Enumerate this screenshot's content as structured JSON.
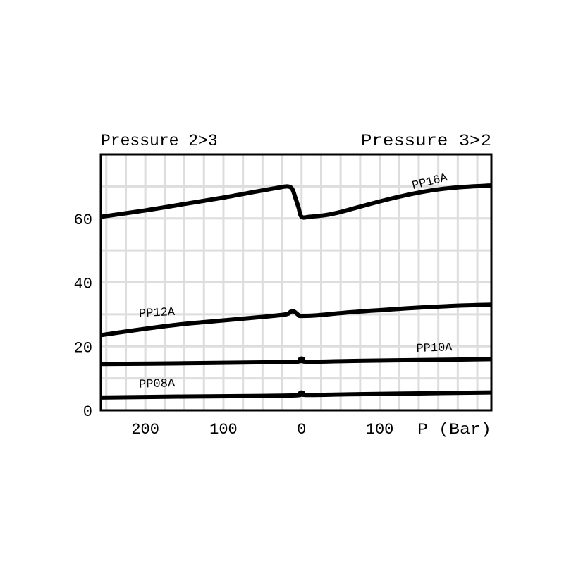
{
  "chart_data": {
    "type": "line",
    "title": "",
    "header_left": "Pressure 2>3",
    "header_right": "Pressure 3>2",
    "xlabel": "P (Bar)",
    "ylabel": "",
    "x_axis_note": "pressure magnitude; left half = 2>3 direction, right half = 3>2 direction",
    "xlim": [
      -257,
      243
    ],
    "ylim": [
      0,
      80
    ],
    "x_ticks": [
      {
        "value": -200,
        "label": "200"
      },
      {
        "value": -100,
        "label": "100"
      },
      {
        "value": 0,
        "label": "0"
      },
      {
        "value": 100,
        "label": "100"
      }
    ],
    "y_ticks": [
      {
        "value": 0,
        "label": "0"
      },
      {
        "value": 20,
        "label": "20"
      },
      {
        "value": 40,
        "label": "40"
      },
      {
        "value": 60,
        "label": "60"
      }
    ],
    "grid": true,
    "series": [
      {
        "name": "PP16A",
        "points": [
          [
            -257,
            60.5
          ],
          [
            -200,
            62.5
          ],
          [
            -150,
            64.5
          ],
          [
            -100,
            66.5
          ],
          [
            -60,
            68.3
          ],
          [
            -30,
            69.6
          ],
          [
            -18,
            70
          ],
          [
            -12,
            69.2
          ],
          [
            -8,
            66.5
          ],
          [
            -4,
            63.5
          ],
          [
            0,
            60.5
          ],
          [
            10,
            60.5
          ],
          [
            30,
            61
          ],
          [
            50,
            62
          ],
          [
            80,
            64
          ],
          [
            120,
            66.5
          ],
          [
            160,
            68.5
          ],
          [
            200,
            69.7
          ],
          [
            243,
            70.3
          ]
        ]
      },
      {
        "name": "PP12A",
        "points": [
          [
            -257,
            23.5
          ],
          [
            -200,
            25.5
          ],
          [
            -150,
            27
          ],
          [
            -100,
            28.1
          ],
          [
            -50,
            29.2
          ],
          [
            -20,
            30
          ],
          [
            -14,
            30.8
          ],
          [
            -10,
            30.9
          ],
          [
            -6,
            30.2
          ],
          [
            -3,
            29.6
          ],
          [
            0,
            29.5
          ],
          [
            20,
            29.7
          ],
          [
            60,
            30.6
          ],
          [
            100,
            31.3
          ],
          [
            150,
            32.1
          ],
          [
            200,
            32.7
          ],
          [
            243,
            33
          ]
        ]
      },
      {
        "name": "PP10A",
        "points": [
          [
            -257,
            14.5
          ],
          [
            -150,
            14.7
          ],
          [
            -50,
            15
          ],
          [
            -5,
            15.2
          ],
          [
            -2,
            16
          ],
          [
            0,
            16.2
          ],
          [
            2,
            16
          ],
          [
            5,
            15.2
          ],
          [
            60,
            15.4
          ],
          [
            150,
            15.7
          ],
          [
            243,
            16
          ]
        ]
      },
      {
        "name": "PP08A",
        "points": [
          [
            -257,
            4
          ],
          [
            -150,
            4.3
          ],
          [
            -50,
            4.5
          ],
          [
            -5,
            4.7
          ],
          [
            -2,
            5.4
          ],
          [
            0,
            5.6
          ],
          [
            2,
            5.4
          ],
          [
            5,
            4.8
          ],
          [
            60,
            5
          ],
          [
            150,
            5.3
          ],
          [
            243,
            5.6
          ]
        ]
      }
    ],
    "annotations": [
      {
        "text": "PP16A",
        "x": 165,
        "y": 70.5,
        "angle": -14
      },
      {
        "text": "PP12A",
        "x": -185,
        "y": 29.5,
        "angle": -3
      },
      {
        "text": "PP10A",
        "x": 170,
        "y": 18.5,
        "angle": -2
      },
      {
        "text": "PP08A",
        "x": -185,
        "y": 7.3,
        "angle": -2
      }
    ]
  }
}
